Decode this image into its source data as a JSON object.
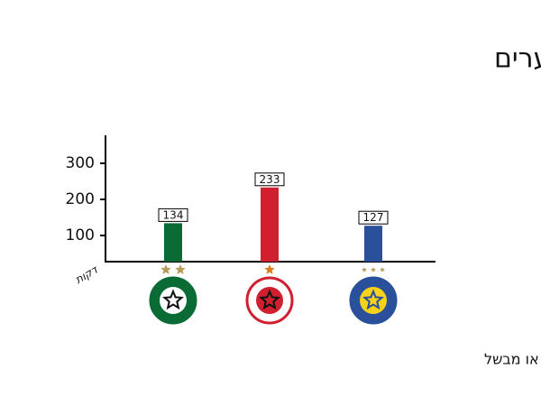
{
  "chart_data": {
    "type": "bar",
    "title": "ממוצע מעורבות החלוצים בשערים",
    "y_label": "דקות",
    "footnote": "* כל כמה דקות השחקן כובש או מבשל",
    "categories": [
      null,
      null,
      null
    ],
    "values": [
      134,
      233,
      127
    ],
    "colors": [
      "#0a6b34",
      "#d0202f",
      "#2a4f9b"
    ],
    "ylim": [
      27.5,
      377.5
    ],
    "yticks": [
      100,
      200,
      300
    ],
    "grid": false
  }
}
